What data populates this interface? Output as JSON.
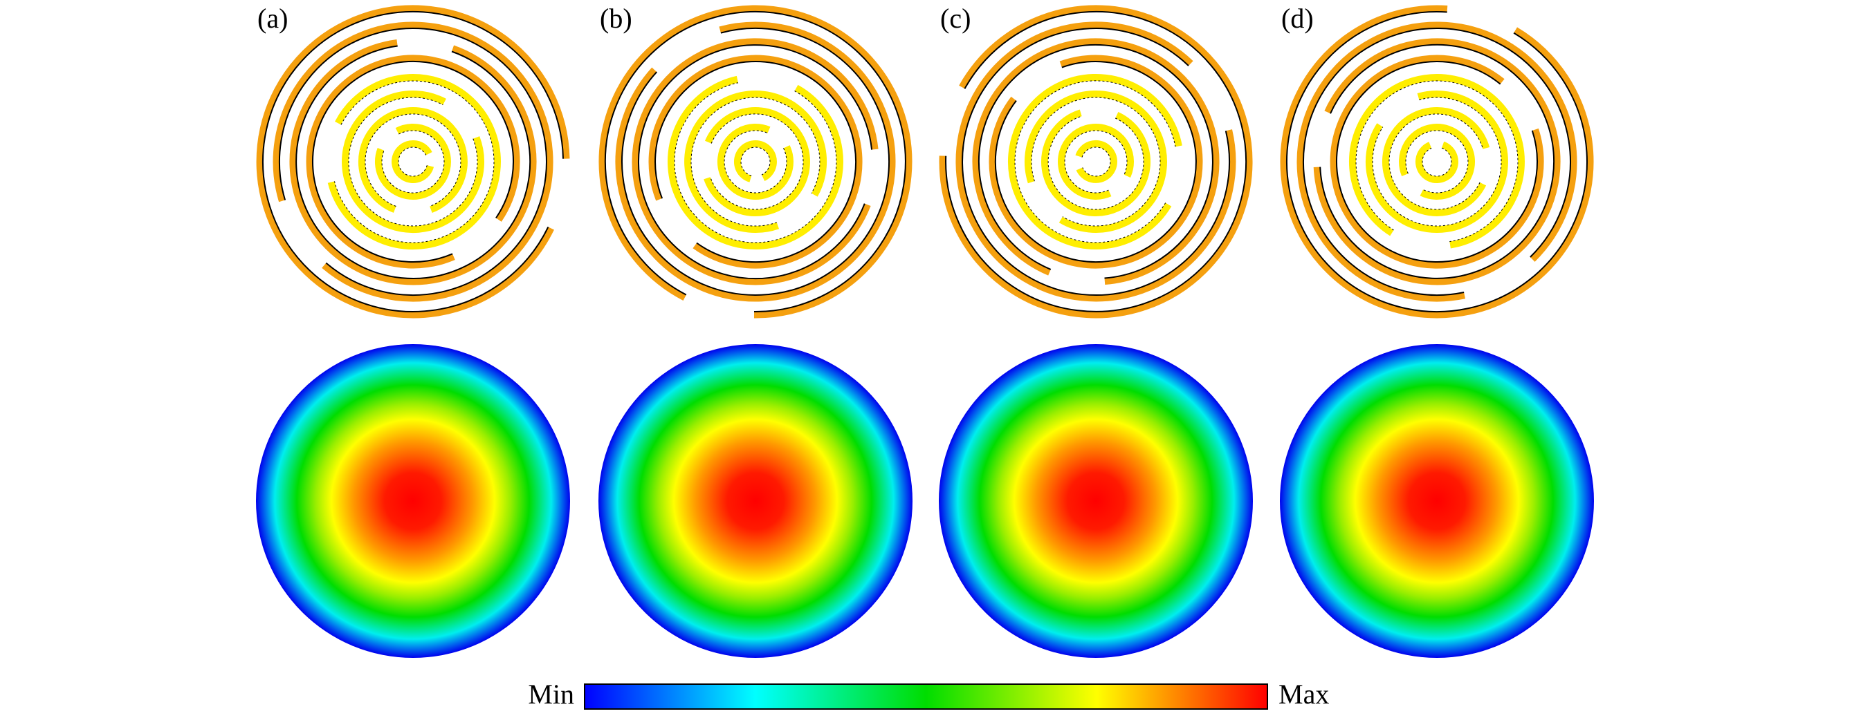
{
  "panels": [
    {
      "label": "(a)"
    },
    {
      "label": "(b)"
    },
    {
      "label": "(c)"
    },
    {
      "label": "(d)"
    }
  ],
  "colorbar": {
    "min_label": "Min",
    "max_label": "Max"
  }
}
